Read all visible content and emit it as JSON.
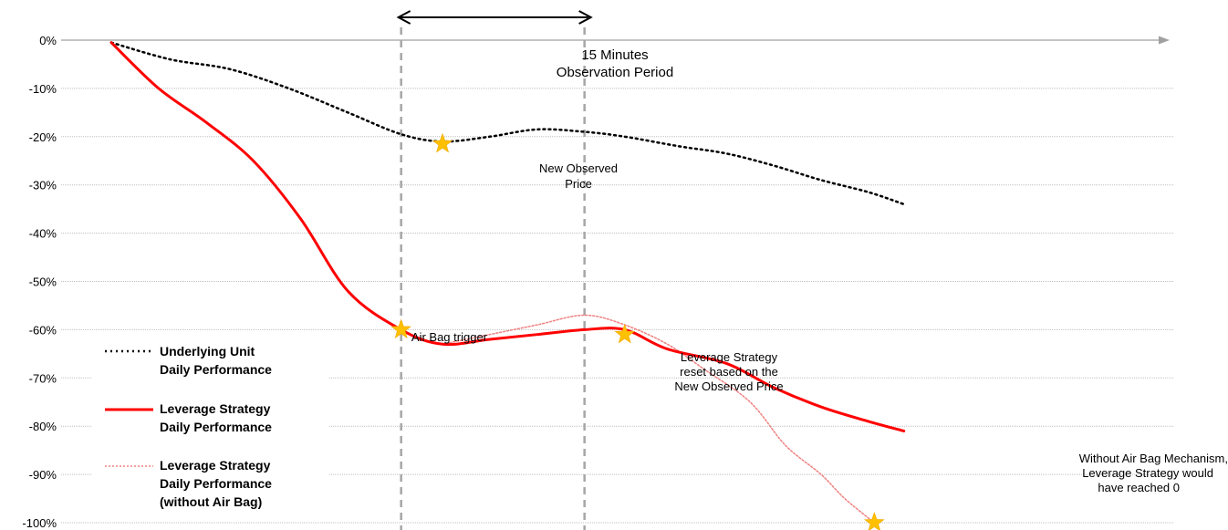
{
  "chart_data": {
    "type": "line",
    "title": "",
    "xlabel": "",
    "ylabel": "",
    "ylim": [
      -100,
      0
    ],
    "y_ticks": [
      "0%",
      "-10%",
      "-20%",
      "-30%",
      "-40%",
      "-50%",
      "-60%",
      "-70%",
      "-80%",
      "-90%",
      "-100%"
    ],
    "grid": "horizontal dotted",
    "x_axis_visible_labels": false,
    "legend_position": "bottom-left",
    "colors": {
      "underlying": "#000000",
      "leverage": "#ff0000",
      "no_airbag": "#f08080",
      "marker": "#ffc000",
      "guide": "#a6a6a6",
      "grid": "#bfbfbf"
    },
    "series": [
      {
        "name": "Underlying Unit Daily Performance",
        "style": "dotted",
        "x": [
          0,
          5,
          10,
          15,
          20,
          24.5,
          28,
          32,
          36,
          40,
          43.4,
          48,
          52,
          56,
          60,
          64,
          67
        ],
        "y": [
          -0.5,
          -4,
          -6,
          -10,
          -15,
          -19.5,
          -21,
          -20,
          -18.5,
          -19,
          -20,
          -22,
          -23.5,
          -26,
          -29,
          -31.5,
          -34
        ]
      },
      {
        "name": "Leverage Strategy Daily Performance",
        "style": "solid",
        "x": [
          0,
          4,
          8,
          12,
          16,
          20,
          24.5,
          28,
          32,
          36,
          40,
          43.4,
          47,
          52,
          56,
          60,
          64,
          67
        ],
        "y": [
          -0.5,
          -10,
          -17,
          -25,
          -37,
          -52,
          -60,
          -63,
          -62,
          -61,
          -60,
          -60,
          -64,
          -67,
          -72,
          -76,
          -79,
          -81
        ]
      },
      {
        "name": "Leverage Strategy Daily Performance (without Air Bag)",
        "style": "dotted",
        "x": [
          28,
          32,
          36,
          40,
          43.4,
          47,
          50,
          54,
          57,
          60,
          62,
          64.5
        ],
        "y": [
          -63,
          -61,
          -59,
          -57,
          -59,
          -63,
          -68,
          -75,
          -84,
          -90,
          -95,
          -100
        ]
      }
    ],
    "markers": [
      {
        "label": "Air Bag trigger",
        "x": 24.5,
        "y": -60
      },
      {
        "label": "New Observed Price",
        "x": 28,
        "y": -21.5
      },
      {
        "label": "Leverage Strategy reset based on the New Observed Price",
        "x": 43.4,
        "y": -61
      },
      {
        "label": "Without Air Bag Mechanism, Leverage Strategy would have reached 0",
        "x": 64.5,
        "y": -100
      }
    ],
    "period": {
      "x_start": 24.5,
      "x_end": 40
    }
  },
  "annotations": {
    "period_line1": "15 Minutes",
    "period_line2": "Observation Period",
    "new_obs_line1": "New Observed",
    "new_obs_line2": "Price",
    "airbag": "Air Bag trigger",
    "reset_line1": "Leverage Strategy",
    "reset_line2": "reset based on the",
    "reset_line3": "New Observed Price",
    "without_line1": "Without Air Bag Mechanism,",
    "without_line2": "Leverage Strategy would",
    "without_line3": "have reached 0"
  },
  "legend": {
    "underlying_line1": "Underlying Unit",
    "underlying_line2": "Daily Performance",
    "leverage_line1": "Leverage Strategy",
    "leverage_line2": "Daily Performance",
    "noairbag_line1": "Leverage Strategy",
    "noairbag_line2": "Daily Performance",
    "noairbag_line3": "(without Air Bag)"
  }
}
